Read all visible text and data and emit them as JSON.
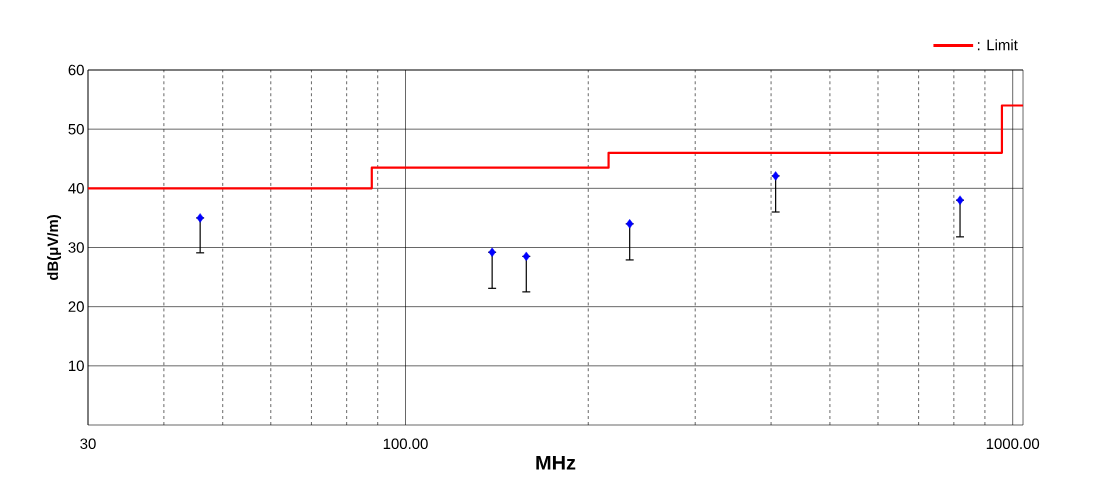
{
  "chart_data": {
    "type": "scatter",
    "xlabel": "MHz",
    "ylabel": "dB(μV/m)",
    "log": "x",
    "grid": true,
    "legend": "top right",
    "marker": "diamond",
    "xlim": [
      30,
      1040
    ],
    "ylim": [
      0,
      60
    ],
    "xticks": [
      30,
      {
        "value": 100,
        "label": "100.00"
      },
      {
        "value": 1000,
        "label": "1000.00"
      }
    ],
    "yticks": [
      10,
      20,
      30,
      40,
      50,
      60
    ],
    "series": [
      {
        "color": "#0000ff",
        "x": [
          45.9,
          138.9,
          158.1,
          234,
          407,
          819
        ],
        "values": [
          35.0,
          29.2,
          28.5,
          34.0,
          42.1,
          38.0
        ],
        "errors": [
          [
            29.1,
            35.0
          ],
          [
            23.1,
            29.2
          ],
          [
            22.5,
            28.5
          ],
          [
            27.9,
            34.0
          ],
          [
            36.0,
            42.1
          ],
          [
            31.8,
            38.0
          ]
        ]
      },
      {
        "type": "step",
        "name": ": Limit",
        "color": "#ff0000",
        "marker": "none",
        "x": [
          30,
          88,
          216,
          960,
          1040
        ],
        "values": [
          40,
          43.5,
          46,
          54,
          54
        ]
      }
    ]
  }
}
